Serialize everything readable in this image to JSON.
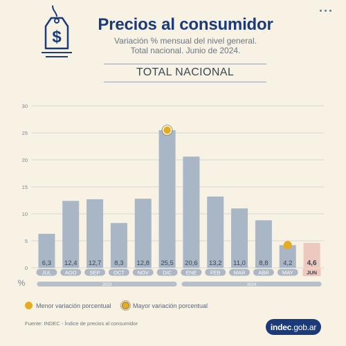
{
  "header": {
    "title": "Precios al consumidor",
    "subtitle_line1": "Variación % mensual del nivel general.",
    "subtitle_line2": "Total nacional. Junio de 2024."
  },
  "section_title": "TOTAL NACIONAL",
  "colors": {
    "bar": "#a9b6c6",
    "bar_highlight": "#ecc8bd",
    "grid": "#c9cdd1",
    "marker": "#e7ab1e"
  },
  "chart_data": {
    "type": "bar",
    "categories": [
      "JUL",
      "AGO",
      "SEP",
      "OCT",
      "NOV",
      "DIC",
      "ENE",
      "FEB",
      "MAR",
      "ABR",
      "MAY",
      "JUN"
    ],
    "values": [
      6.3,
      12.4,
      12.7,
      8.3,
      12.8,
      25.5,
      20.6,
      13.2,
      11.0,
      8.8,
      4.2,
      4.6
    ],
    "labels": [
      "6,3",
      "12,4",
      "12,7",
      "8,3",
      "12,8",
      "25,5",
      "20,6",
      "13,2",
      "11,0",
      "8,8",
      "4,2",
      "4,6"
    ],
    "yticks": [
      0,
      5,
      10,
      15,
      20,
      25,
      30
    ],
    "ylim": [
      0,
      30
    ],
    "ylabel": "%",
    "highlight_index": 11,
    "min_marker_index": 10,
    "max_marker_index": 5,
    "year_groups": [
      {
        "label": "2023",
        "start": 0,
        "end": 5
      },
      {
        "label": "2024",
        "start": 6,
        "end": 11
      }
    ],
    "grid": true
  },
  "legend": {
    "min_label": "Menor variación porcentual",
    "max_label": "Mayor variación porcentual"
  },
  "footer": {
    "source": "Fuente: INDEC - Índice de precios al consumidor",
    "logo_main": "indec",
    "logo_suffix": ".gob.ar"
  }
}
